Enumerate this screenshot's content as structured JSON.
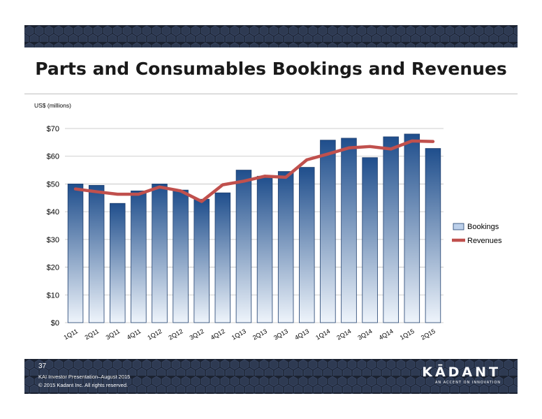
{
  "slide": {
    "title": "Parts and Consumables Bookings and Revenues",
    "page_number": "37",
    "footer_line1": "KAI Investor Presentation–August 2015",
    "footer_line2": "© 2015 Kadant Inc. All rights reserved.",
    "logo_text": "KĀDANT",
    "logo_tagline": "AN ACCENT ON INNOVATION"
  },
  "colors": {
    "band": "#1b2230",
    "bar_top": "#1f4e8c",
    "bar_bottom": "#eef4fb",
    "line": "#c0504d",
    "grid": "#bfbfbf"
  },
  "chart_data": {
    "type": "bar",
    "ylabel": "US$ (millions)",
    "ylim": [
      0,
      70
    ],
    "yticks": [
      "$0",
      "$10",
      "$20",
      "$30",
      "$40",
      "$50",
      "$60",
      "$70"
    ],
    "grid": true,
    "legend_position": "right",
    "categories": [
      "1Q11",
      "2Q11",
      "3Q11",
      "4Q11",
      "1Q12",
      "2Q12",
      "3Q12",
      "4Q12",
      "1Q13",
      "2Q13",
      "3Q13",
      "4Q13",
      "1Q14",
      "2Q14",
      "3Q14",
      "4Q14",
      "1Q15",
      "2Q15"
    ],
    "series": [
      {
        "name": "Bookings",
        "type": "bar",
        "values": [
          50.0,
          49.5,
          43.0,
          47.5,
          50.0,
          47.8,
          44.5,
          46.8,
          55.0,
          52.8,
          54.5,
          56.0,
          65.8,
          66.5,
          59.5,
          67.0,
          68.0,
          62.8
        ]
      },
      {
        "name": "Revenues",
        "type": "line",
        "values": [
          48.2,
          47.2,
          46.3,
          46.3,
          48.9,
          47.5,
          43.7,
          49.7,
          51.0,
          52.8,
          52.4,
          58.7,
          60.8,
          63.0,
          63.5,
          62.6,
          65.5,
          65.3
        ]
      }
    ]
  }
}
